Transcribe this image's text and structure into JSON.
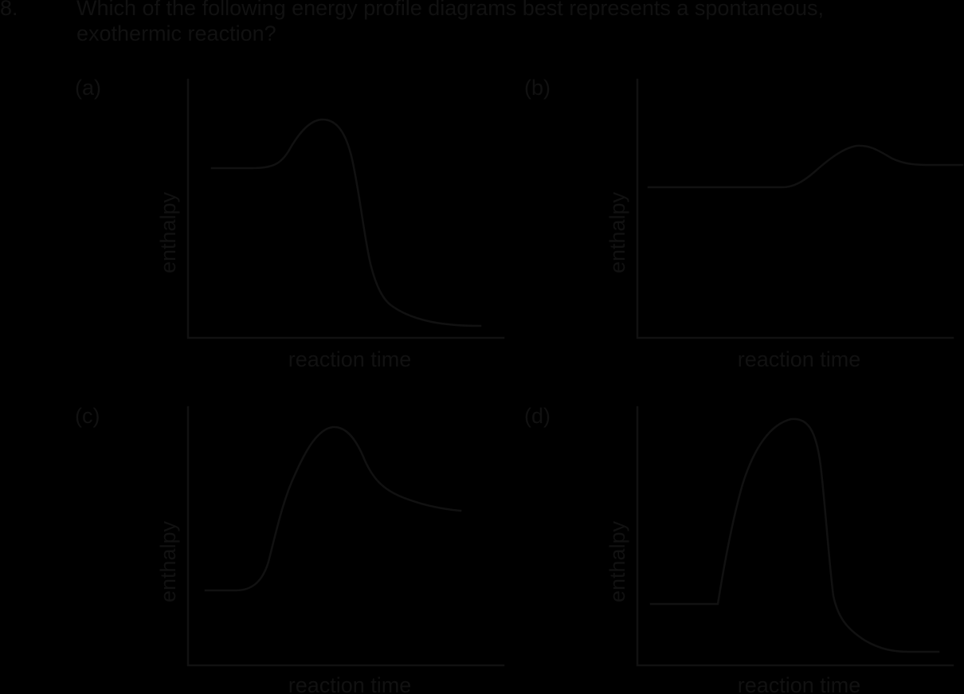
{
  "question": {
    "number": "8.",
    "line1": "Which of the following energy profile diagrams best represents a spontaneous,",
    "line2": "exothermic reaction?"
  },
  "panels": [
    {
      "label": "(a)",
      "xlabel": "reaction time",
      "ylabel": "enthalpy",
      "shape": "reactants mid level, small activation hump, products drop to a much lower level"
    },
    {
      "label": "(b)",
      "xlabel": "reaction time",
      "ylabel": "enthalpy",
      "shape": "reactants mid level, small hump, products slightly higher than reactants"
    },
    {
      "label": "(c)",
      "xlabel": "reaction time",
      "ylabel": "enthalpy",
      "shape": "reactants low, large hump, products higher than reactants"
    },
    {
      "label": "(d)",
      "xlabel": "reaction time",
      "ylabel": "enthalpy",
      "shape": "reactants low-mid, very large hump, products lowest"
    }
  ],
  "colors": {
    "background": "#000000",
    "ink": "#111111"
  }
}
